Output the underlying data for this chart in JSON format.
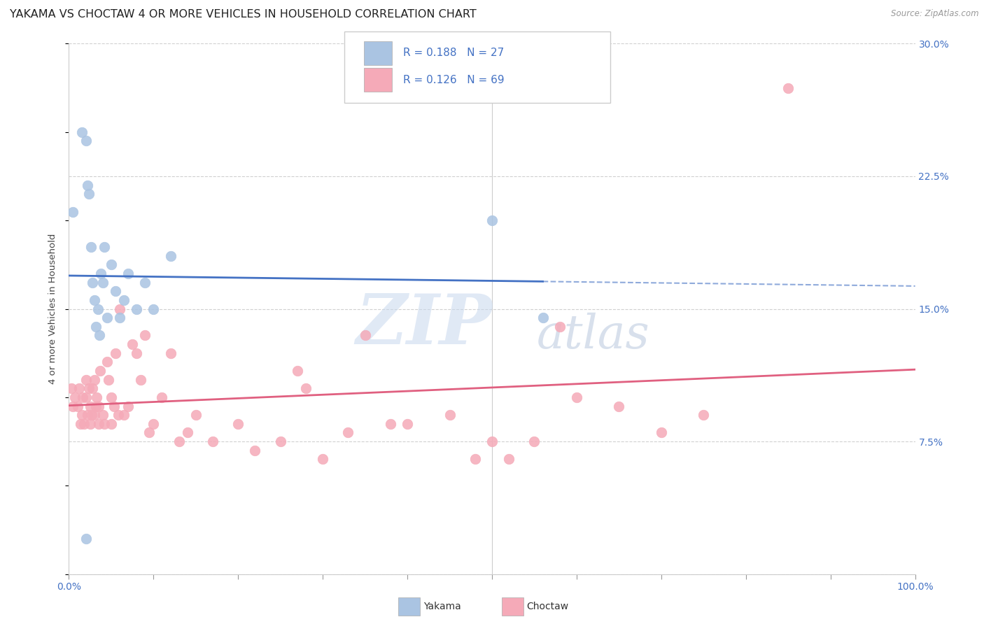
{
  "title": "YAKAMA VS CHOCTAW 4 OR MORE VEHICLES IN HOUSEHOLD CORRELATION CHART",
  "source": "Source: ZipAtlas.com",
  "ylabel": "4 or more Vehicles in Household",
  "watermark_zip": "ZIP",
  "watermark_atlas": "atlas",
  "yakama_R": 0.188,
  "yakama_N": 27,
  "choctaw_R": 0.126,
  "choctaw_N": 69,
  "yakama_color": "#aac4e2",
  "choctaw_color": "#f5aab8",
  "yakama_line_color": "#4472c4",
  "choctaw_line_color": "#e06080",
  "background_color": "#ffffff",
  "grid_color": "#d0d0d0",
  "title_fontsize": 11.5,
  "xlim": [
    0,
    100
  ],
  "ylim": [
    0,
    30
  ],
  "xticks": [
    0,
    10,
    20,
    30,
    40,
    50,
    60,
    70,
    80,
    90,
    100
  ],
  "xtick_labels": [
    "0.0%",
    "",
    "",
    "",
    "",
    "",
    "",
    "",
    "",
    "",
    "100.0%"
  ],
  "yticks": [
    0,
    7.5,
    15.0,
    22.5,
    30.0
  ],
  "ytick_labels": [
    "",
    "7.5%",
    "15.0%",
    "22.5%",
    "30.0%"
  ],
  "yakama_x": [
    0.5,
    1.5,
    2.0,
    2.2,
    2.4,
    2.6,
    2.8,
    3.0,
    3.2,
    3.4,
    3.6,
    3.8,
    4.0,
    4.2,
    4.5,
    5.0,
    5.5,
    6.0,
    6.5,
    7.0,
    8.0,
    9.0,
    10.0,
    12.0,
    50.0,
    56.0,
    2.0
  ],
  "yakama_y": [
    20.5,
    25.0,
    24.5,
    22.0,
    21.5,
    18.5,
    16.5,
    15.5,
    14.0,
    15.0,
    13.5,
    17.0,
    16.5,
    18.5,
    14.5,
    17.5,
    16.0,
    14.5,
    15.5,
    17.0,
    15.0,
    16.5,
    15.0,
    18.0,
    20.0,
    14.5,
    2.0
  ],
  "choctaw_x": [
    0.3,
    0.5,
    0.7,
    1.0,
    1.2,
    1.4,
    1.5,
    1.6,
    1.8,
    2.0,
    2.0,
    2.2,
    2.4,
    2.5,
    2.5,
    2.7,
    2.8,
    3.0,
    3.0,
    3.2,
    3.3,
    3.5,
    3.5,
    3.7,
    4.0,
    4.2,
    4.5,
    4.7,
    5.0,
    5.0,
    5.3,
    5.5,
    5.8,
    6.0,
    6.5,
    7.0,
    7.5,
    8.0,
    8.5,
    9.0,
    9.5,
    10.0,
    11.0,
    12.0,
    13.0,
    14.0,
    15.0,
    17.0,
    20.0,
    22.0,
    25.0,
    27.0,
    28.0,
    30.0,
    33.0,
    35.0,
    38.0,
    40.0,
    45.0,
    48.0,
    50.0,
    52.0,
    55.0,
    58.0,
    60.0,
    65.0,
    70.0,
    75.0,
    85.0
  ],
  "choctaw_y": [
    10.5,
    9.5,
    10.0,
    9.5,
    10.5,
    8.5,
    9.0,
    10.0,
    8.5,
    11.0,
    10.0,
    9.0,
    10.5,
    8.5,
    9.5,
    9.0,
    10.5,
    11.0,
    9.0,
    9.5,
    10.0,
    9.5,
    8.5,
    11.5,
    9.0,
    8.5,
    12.0,
    11.0,
    8.5,
    10.0,
    9.5,
    12.5,
    9.0,
    15.0,
    9.0,
    9.5,
    13.0,
    12.5,
    11.0,
    13.5,
    8.0,
    8.5,
    10.0,
    12.5,
    7.5,
    8.0,
    9.0,
    7.5,
    8.5,
    7.0,
    7.5,
    11.5,
    10.5,
    6.5,
    8.0,
    13.5,
    8.5,
    8.5,
    9.0,
    6.5,
    7.5,
    6.5,
    7.5,
    14.0,
    10.0,
    9.5,
    8.0,
    9.0,
    27.5
  ]
}
